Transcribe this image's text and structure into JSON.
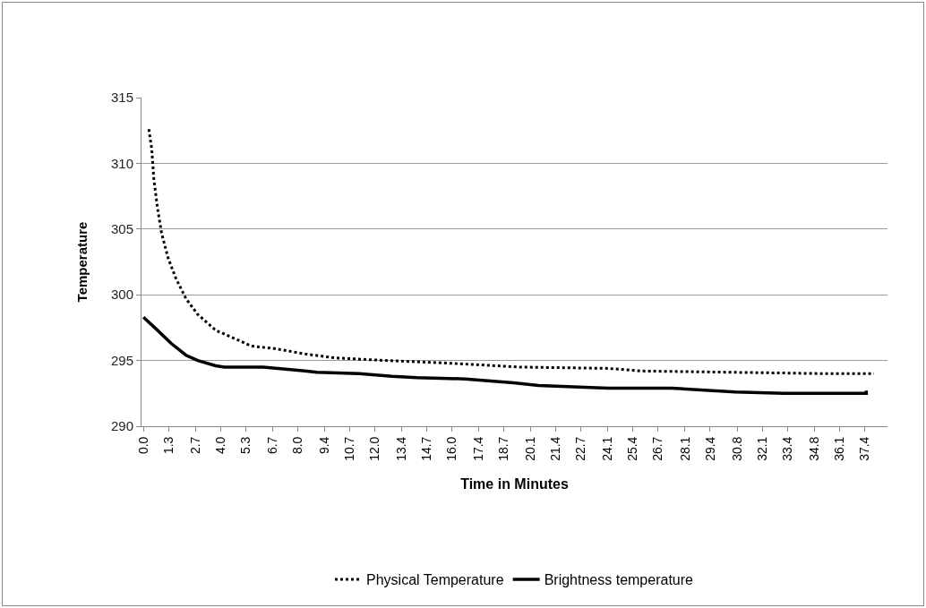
{
  "chart_data": {
    "type": "line",
    "xlabel": "Time in Minutes",
    "ylabel": "Temperature",
    "xlim": [
      -0.1,
      38.6
    ],
    "ylim": [
      290,
      315
    ],
    "yticks": [
      290,
      295,
      300,
      305,
      310,
      315
    ],
    "xticks": [
      {
        "value": 0,
        "label": "0.0"
      },
      1.3,
      2.7,
      {
        "value": 4,
        "label": "4.0"
      },
      5.3,
      6.7,
      {
        "value": 8,
        "label": "8.0"
      },
      9.4,
      10.7,
      {
        "value": 12,
        "label": "12.0"
      },
      13.4,
      14.7,
      {
        "value": 16,
        "label": "16.0"
      },
      17.4,
      18.7,
      20.1,
      21.4,
      22.7,
      24.1,
      25.4,
      26.7,
      28.1,
      29.4,
      30.8,
      32.1,
      33.4,
      34.8,
      36.1,
      37.4
    ],
    "grid": "y",
    "legend": "bottom",
    "marker": "none",
    "series": [
      {
        "name": "Physical Temperature",
        "color": "#000000",
        "line_style": "dotted",
        "x": [
          0.28,
          0.43,
          0.54,
          0.73,
          0.94,
          1.28,
          1.67,
          2.21,
          2.82,
          3.75,
          4.68,
          5.6,
          6.84,
          8.38,
          9.92,
          12.55,
          15.8,
          19.5,
          24.1,
          25.8,
          30.7,
          35.4,
          37.9
        ],
        "values": [
          312.6,
          311.1,
          308.8,
          306.6,
          304.7,
          302.8,
          301.3,
          299.7,
          298.5,
          297.3,
          296.7,
          296.1,
          295.9,
          295.5,
          295.2,
          295.0,
          294.8,
          294.5,
          294.4,
          294.2,
          294.1,
          294.0,
          294.0
        ]
      },
      {
        "name": "Brightness temperature",
        "color": "#000000",
        "line_style": "solid",
        "x": [
          0,
          0.66,
          1.44,
          2.21,
          2.82,
          3.75,
          4.21,
          6.22,
          8.38,
          9.0,
          11.2,
          12.9,
          14.2,
          16.7,
          19.2,
          20.5,
          24.1,
          27.4,
          30.7,
          33.2,
          37.5,
          37.5
        ],
        "values": [
          298.3,
          297.4,
          296.3,
          295.4,
          295.0,
          294.6,
          294.5,
          294.5,
          294.2,
          294.1,
          294.0,
          293.8,
          293.7,
          293.6,
          293.3,
          293.1,
          292.9,
          292.9,
          292.6,
          292.5,
          292.5,
          292.7
        ]
      }
    ]
  }
}
